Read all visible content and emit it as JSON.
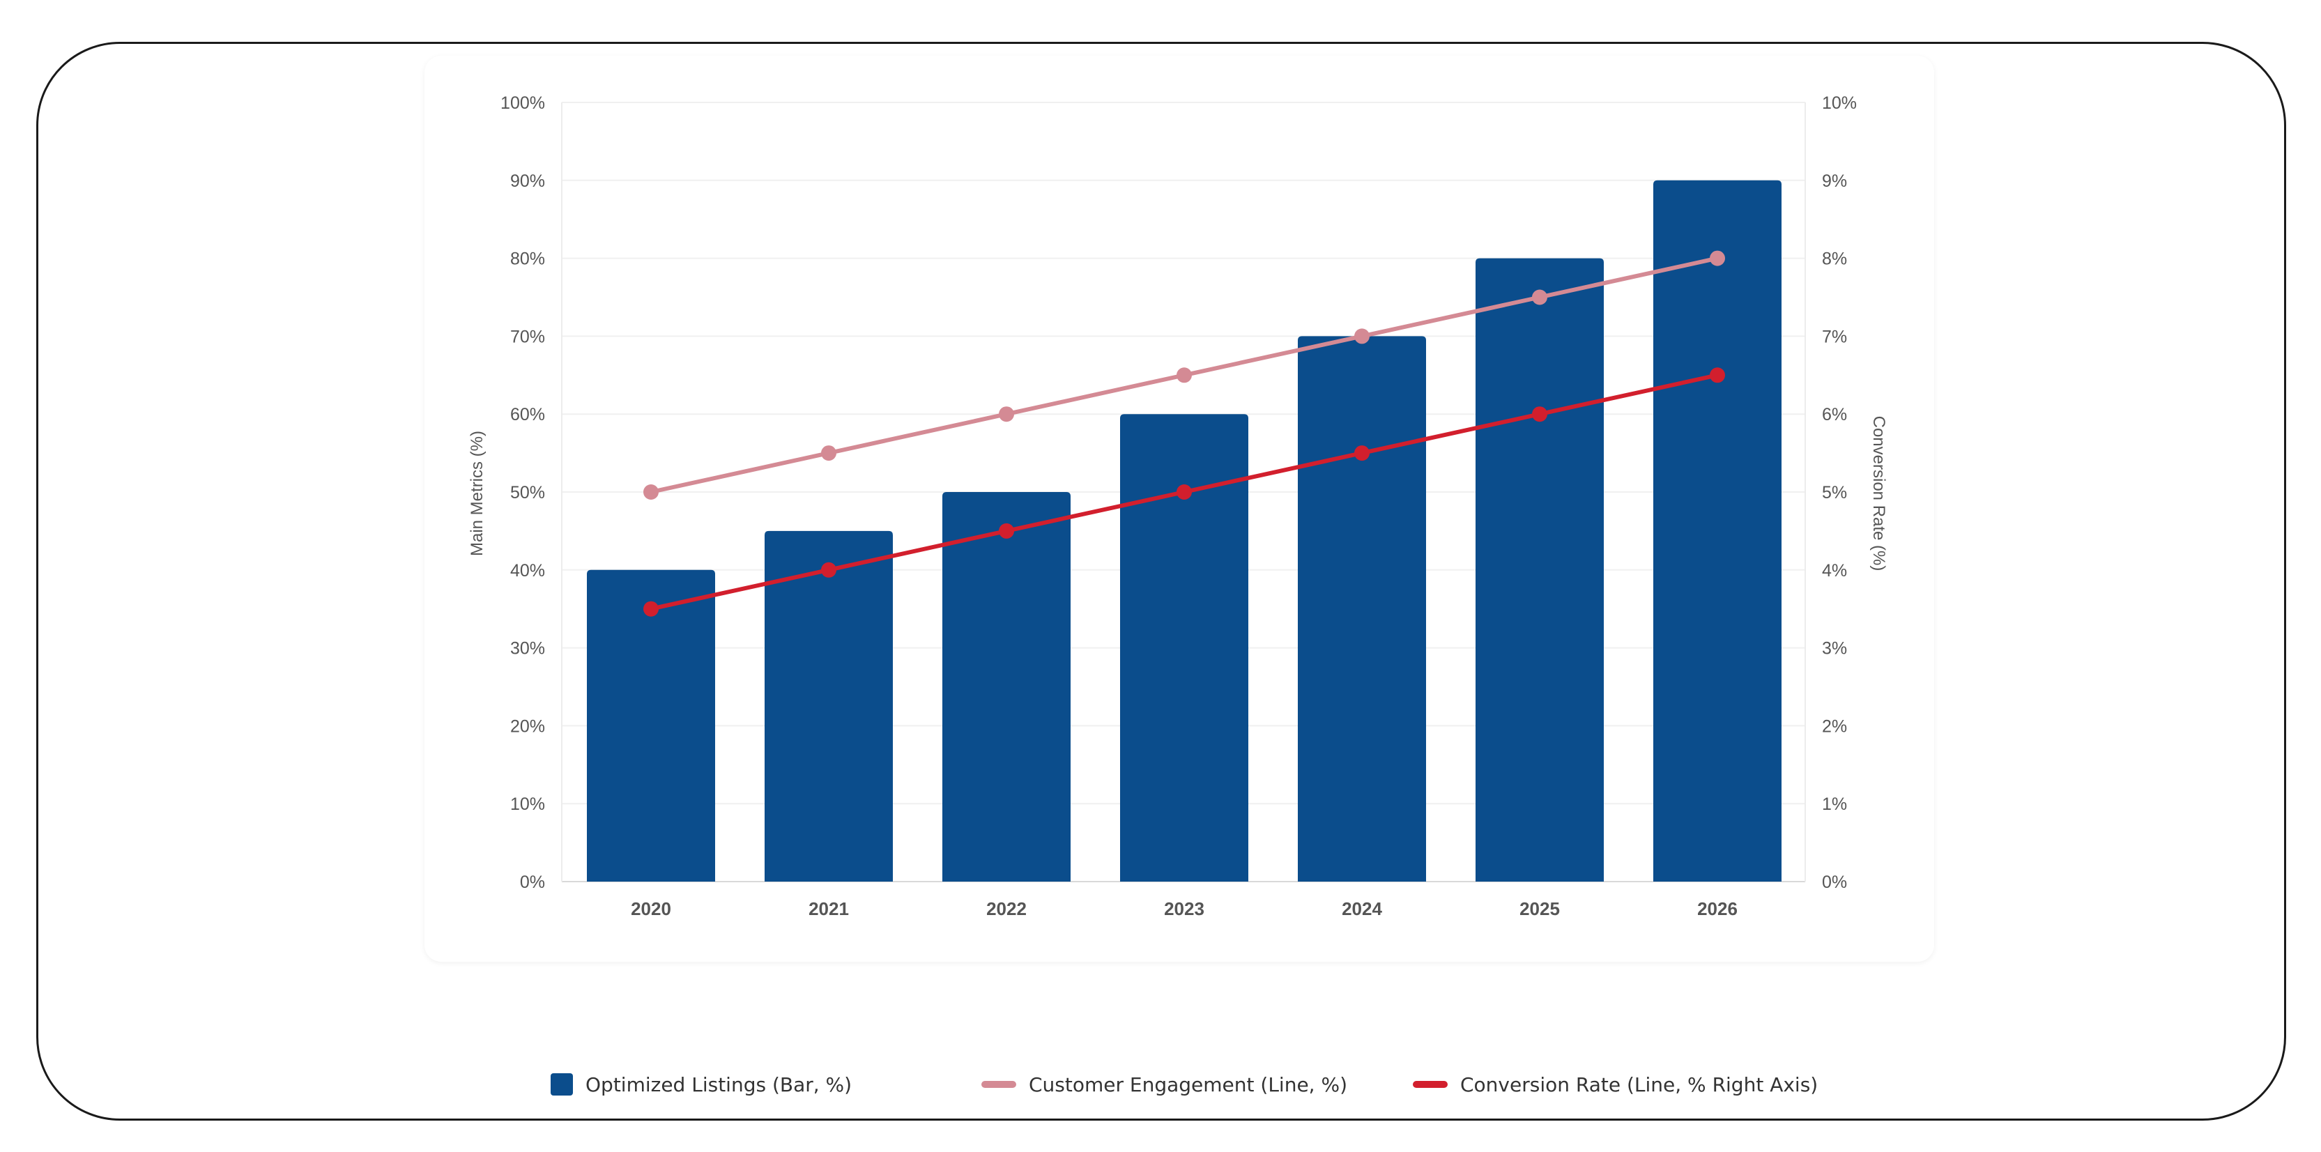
{
  "chart_data": {
    "type": "bar",
    "categories": [
      "2020",
      "2021",
      "2022",
      "2023",
      "2024",
      "2025",
      "2026"
    ],
    "series": [
      {
        "name": "Optimized Listings (Bar, %)",
        "kind": "bar",
        "axis": "left",
        "color": "#0b4d8c",
        "values": [
          40,
          45,
          50,
          60,
          70,
          80,
          90
        ]
      },
      {
        "name": "Customer Engagement (Line, %)",
        "kind": "line",
        "axis": "left",
        "color": "#d48a94",
        "values": [
          50,
          55,
          60,
          65,
          70,
          75,
          80
        ]
      },
      {
        "name": "Conversion Rate (Line, % Right Axis)",
        "kind": "line",
        "axis": "right",
        "color": "#d21f2d",
        "values": [
          3.5,
          4.0,
          4.5,
          5.0,
          5.5,
          6.0,
          6.5
        ]
      }
    ],
    "ylabel": "Main Metrics (%)",
    "y2label": "Conversion Rate (%)",
    "ylim": [
      0,
      100
    ],
    "y2lim": [
      0,
      10
    ],
    "yticks": [
      "0%",
      "10%",
      "20%",
      "30%",
      "40%",
      "50%",
      "60%",
      "70%",
      "80%",
      "90%",
      "100%"
    ],
    "y2ticks": [
      "0%",
      "1%",
      "2%",
      "3%",
      "4%",
      "5%",
      "6%",
      "7%",
      "8%",
      "9%",
      "10%"
    ],
    "grid": true,
    "legend_position": "bottom"
  },
  "legend": {
    "items": [
      {
        "label": "Optimized Listings (Bar, %)",
        "swatch": "box",
        "color": "#0b4d8c"
      },
      {
        "label": "Customer Engagement (Line, %)",
        "swatch": "line",
        "color": "#d48a94"
      },
      {
        "label": "Conversion Rate (Line, % Right Axis)",
        "swatch": "line",
        "color": "#d21f2d"
      }
    ]
  }
}
